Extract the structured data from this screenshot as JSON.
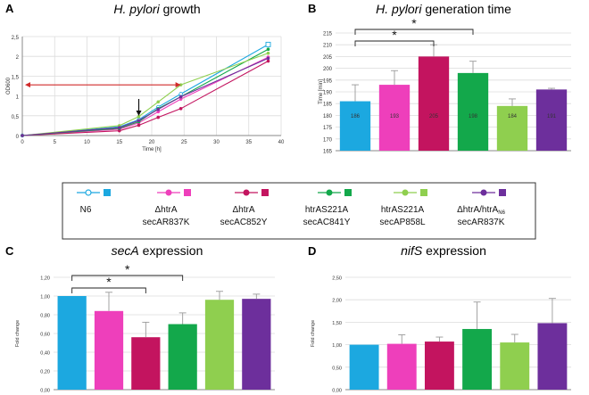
{
  "colors": {
    "N6": "#1ca8e0",
    "htrA_secAR837K": "#ee3fbb",
    "htrA_secAC852Y": "#c3145f",
    "htrAS221A_secAC841Y": "#13a84b",
    "htrAS221A_secAP858L": "#8fcf4f",
    "htrA_htrAN6_secAR837K": "#6d2f9c",
    "grid": "#dcdcdc",
    "axis": "#888888",
    "arrow_red": "#d02b2b"
  },
  "legend": {
    "items": [
      {
        "key": "N6",
        "line1": "N6",
        "line2": "",
        "sub": ""
      },
      {
        "key": "htrA_secAR837K",
        "line1": "ΔhtrA",
        "line2": "secAR837K",
        "sub": ""
      },
      {
        "key": "htrA_secAC852Y",
        "line1": "ΔhtrA",
        "line2": "secAC852Y",
        "sub": ""
      },
      {
        "key": "htrAS221A_secAC841Y",
        "line1": "htrAS221A",
        "line2": "secAC841Y",
        "sub": ""
      },
      {
        "key": "htrAS221A_secAP858L",
        "line1": "htrAS221A",
        "line2": "secAP858L",
        "sub": ""
      },
      {
        "key": "htrA_htrAN6_secAR837K",
        "line1": "ΔhtrA/htrA",
        "line2": "secAR837K",
        "sub": "N6"
      }
    ]
  },
  "chart_data": [
    {
      "panel": "A",
      "type": "line",
      "title": "H. pylori growth",
      "xlabel": "Time [h]",
      "ylabel": "OD600",
      "xlim": [
        0,
        40
      ],
      "ylim": [
        0,
        2.5
      ],
      "xticks": [
        "0",
        "5",
        "10",
        "15",
        "20",
        "25",
        "30",
        "35",
        "40"
      ],
      "yticks": [
        "0",
        "0,5",
        "1",
        "1,5",
        "2",
        "2,5"
      ],
      "x": [
        0,
        15,
        18,
        21,
        24.5,
        38
      ],
      "series": [
        {
          "name": "N6",
          "key": "N6",
          "values": [
            0.0,
            0.22,
            0.4,
            0.72,
            1.05,
            2.3
          ]
        },
        {
          "name": "ΔhtrA secAR837K",
          "key": "htrA_secAR837K",
          "values": [
            0.0,
            0.16,
            0.32,
            0.6,
            0.92,
            1.98
          ]
        },
        {
          "name": "ΔhtrA secAC852Y",
          "key": "htrA_secAC852Y",
          "values": [
            0.0,
            0.12,
            0.26,
            0.46,
            0.68,
            1.88
          ]
        },
        {
          "name": "htrAS221A secAC841Y",
          "key": "htrAS221A_secAC841Y",
          "values": [
            0.0,
            0.18,
            0.35,
            0.68,
            0.98,
            2.18
          ]
        },
        {
          "name": "htrAS221A secAP858L",
          "key": "htrAS221A_secAP858L",
          "values": [
            0.0,
            0.25,
            0.48,
            0.85,
            1.28,
            2.08
          ]
        },
        {
          "name": "ΔhtrA/htrAN6 secAR837K",
          "key": "htrA_htrAN6_secAR837K",
          "values": [
            0.0,
            0.2,
            0.38,
            0.66,
            0.98,
            1.95
          ]
        }
      ],
      "annotations": {
        "down_arrow_x": 18,
        "red_arrow_y": 1.28,
        "red_arrow_x": [
          0,
          24.5
        ]
      }
    },
    {
      "panel": "B",
      "type": "bar",
      "title": "H. pylori generation time",
      "xlabel": "",
      "ylabel": "Time [min]",
      "ylim": [
        165,
        215
      ],
      "yticks": [
        "165",
        "170",
        "175",
        "180",
        "185",
        "190",
        "195",
        "200",
        "205",
        "210",
        "215"
      ],
      "keys": [
        "N6",
        "htrA_secAR837K",
        "htrA_secAC852Y",
        "htrAS221A_secAC841Y",
        "htrAS221A_secAP858L",
        "htrA_htrAN6_secAR837K"
      ],
      "values": [
        186,
        193,
        205,
        198,
        184,
        191
      ],
      "value_labels": [
        "186",
        "193",
        "205",
        "198",
        "184",
        "191"
      ],
      "errors": [
        7,
        6,
        5,
        5,
        3,
        0.5
      ],
      "significance": [
        {
          "from": 0,
          "to": 2,
          "label": "*"
        },
        {
          "from": 0,
          "to": 3,
          "label": "*"
        }
      ]
    },
    {
      "panel": "C",
      "type": "bar",
      "title": "secA expression",
      "xlabel": "",
      "ylabel": "Fold change",
      "ylim": [
        0,
        1.2
      ],
      "yticks": [
        "0,00",
        "0,20",
        "0,40",
        "0,60",
        "0,80",
        "1,00",
        "1,20"
      ],
      "keys": [
        "N6",
        "htrA_secAR837K",
        "htrA_secAC852Y",
        "htrAS221A_secAC841Y",
        "htrAS221A_secAP858L",
        "htrA_htrAN6_secAR837K"
      ],
      "values": [
        1.0,
        0.84,
        0.56,
        0.7,
        0.96,
        0.97
      ],
      "errors": [
        0.0,
        0.2,
        0.16,
        0.12,
        0.09,
        0.05
      ],
      "significance": [
        {
          "from": 0,
          "to": 2,
          "label": "*"
        },
        {
          "from": 0,
          "to": 3,
          "label": "*"
        }
      ]
    },
    {
      "panel": "D",
      "type": "bar",
      "title": "nifS expression",
      "xlabel": "",
      "ylabel": "Fold change",
      "ylim": [
        0,
        2.5
      ],
      "yticks": [
        "0,00",
        "0,50",
        "1,00",
        "1,50",
        "2,00",
        "2,50"
      ],
      "keys": [
        "N6",
        "htrA_secAR837K",
        "htrA_secAC852Y",
        "htrAS221A_secAC841Y",
        "htrAS221A_secAP858L",
        "htrA_htrAN6_secAR837K"
      ],
      "values": [
        1.0,
        1.02,
        1.07,
        1.35,
        1.05,
        1.48
      ],
      "errors": [
        0.0,
        0.2,
        0.1,
        0.6,
        0.18,
        0.55
      ],
      "significance": []
    }
  ],
  "panel_letters": {
    "A": "A",
    "B": "B",
    "C": "C",
    "D": "D"
  },
  "titles": {
    "A": {
      "italic": "H. pylori",
      "rest": " growth"
    },
    "B": {
      "italic": "H. pylori",
      "rest": " generation time"
    },
    "C": {
      "italic": "secA",
      "rest": " expression"
    },
    "D": {
      "italic": "nifS",
      "rest": " expression"
    }
  }
}
